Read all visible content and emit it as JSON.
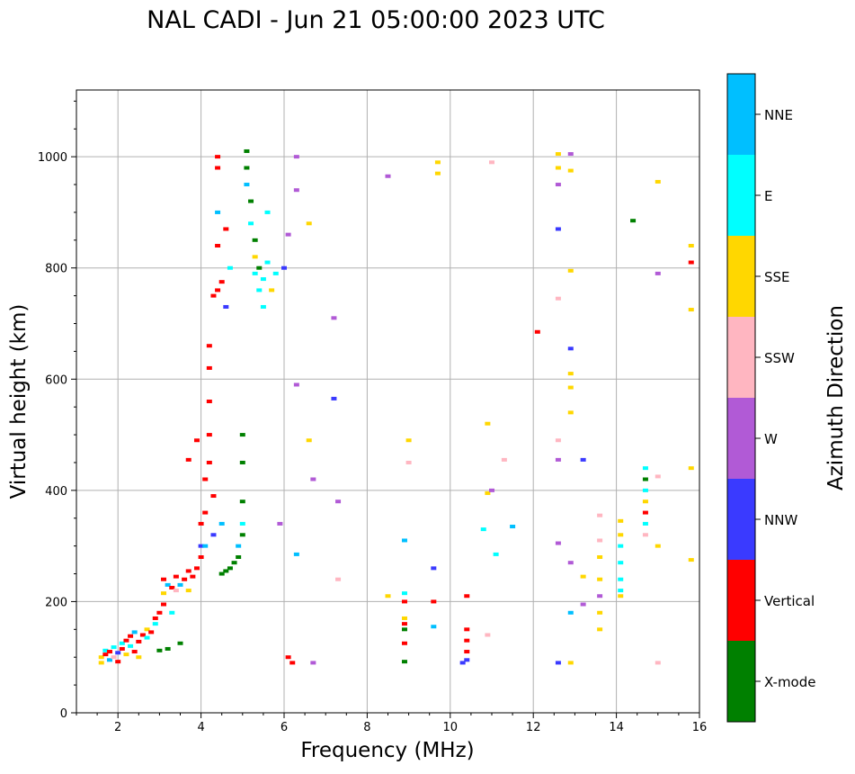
{
  "chart_data": {
    "type": "scatter",
    "title": "NAL CADI - Jun 21 05:00:00 2023 UTC",
    "xlabel": "Frequency (MHz)",
    "ylabel": "Virtual height (km)",
    "xlim": [
      1,
      16
    ],
    "ylim": [
      0,
      1120
    ],
    "x_ticks": [
      2,
      4,
      6,
      8,
      10,
      12,
      14,
      16
    ],
    "y_ticks": [
      0,
      200,
      400,
      600,
      800,
      1000
    ],
    "grid": true,
    "colorbar": {
      "label": "Azimuth Direction",
      "categories": [
        {
          "name": "X-mode",
          "color": "#008000"
        },
        {
          "name": "Vertical",
          "color": "#ff0000"
        },
        {
          "name": "NNW",
          "color": "#3a3aff"
        },
        {
          "name": "W",
          "color": "#b15ad6"
        },
        {
          "name": "SSW",
          "color": "#ffb6c1"
        },
        {
          "name": "SSE",
          "color": "#ffd700"
        },
        {
          "name": "E",
          "color": "#00ffff"
        },
        {
          "name": "NNE",
          "color": "#00bfff"
        }
      ]
    },
    "points": [
      {
        "f": 1.6,
        "h": 90,
        "c": "SSE"
      },
      {
        "f": 1.6,
        "h": 100,
        "c": "SSE"
      },
      {
        "f": 1.7,
        "h": 105,
        "c": "Vertical"
      },
      {
        "f": 1.7,
        "h": 112,
        "c": "E"
      },
      {
        "f": 1.8,
        "h": 95,
        "c": "NNE"
      },
      {
        "f": 1.8,
        "h": 110,
        "c": "Vertical"
      },
      {
        "f": 1.9,
        "h": 100,
        "c": "SSW"
      },
      {
        "f": 1.9,
        "h": 118,
        "c": "E"
      },
      {
        "f": 2.0,
        "h": 92,
        "c": "Vertical"
      },
      {
        "f": 2.0,
        "h": 108,
        "c": "NNW"
      },
      {
        "f": 2.1,
        "h": 115,
        "c": "Vertical"
      },
      {
        "f": 2.1,
        "h": 125,
        "c": "E"
      },
      {
        "f": 2.2,
        "h": 105,
        "c": "SSE"
      },
      {
        "f": 2.2,
        "h": 130,
        "c": "Vertical"
      },
      {
        "f": 2.3,
        "h": 120,
        "c": "E"
      },
      {
        "f": 2.3,
        "h": 138,
        "c": "Vertical"
      },
      {
        "f": 2.4,
        "h": 110,
        "c": "Vertical"
      },
      {
        "f": 2.4,
        "h": 145,
        "c": "NNE"
      },
      {
        "f": 2.5,
        "h": 128,
        "c": "Vertical"
      },
      {
        "f": 2.5,
        "h": 100,
        "c": "SSE"
      },
      {
        "f": 2.6,
        "h": 140,
        "c": "Vertical"
      },
      {
        "f": 2.7,
        "h": 135,
        "c": "E"
      },
      {
        "f": 2.7,
        "h": 150,
        "c": "SSE"
      },
      {
        "f": 2.8,
        "h": 145,
        "c": "Vertical"
      },
      {
        "f": 2.9,
        "h": 160,
        "c": "E"
      },
      {
        "f": 2.9,
        "h": 170,
        "c": "Vertical"
      },
      {
        "f": 3.0,
        "h": 180,
        "c": "Vertical"
      },
      {
        "f": 3.0,
        "h": 112,
        "c": "X-mode"
      },
      {
        "f": 3.1,
        "h": 195,
        "c": "Vertical"
      },
      {
        "f": 3.1,
        "h": 215,
        "c": "SSE"
      },
      {
        "f": 3.1,
        "h": 240,
        "c": "Vertical"
      },
      {
        "f": 3.2,
        "h": 230,
        "c": "NNE"
      },
      {
        "f": 3.2,
        "h": 115,
        "c": "X-mode"
      },
      {
        "f": 3.3,
        "h": 225,
        "c": "Vertical"
      },
      {
        "f": 3.3,
        "h": 180,
        "c": "E"
      },
      {
        "f": 3.4,
        "h": 245,
        "c": "Vertical"
      },
      {
        "f": 3.4,
        "h": 220,
        "c": "SSW"
      },
      {
        "f": 3.5,
        "h": 230,
        "c": "NNE"
      },
      {
        "f": 3.5,
        "h": 125,
        "c": "X-mode"
      },
      {
        "f": 3.6,
        "h": 240,
        "c": "Vertical"
      },
      {
        "f": 3.7,
        "h": 220,
        "c": "SSE"
      },
      {
        "f": 3.7,
        "h": 255,
        "c": "Vertical"
      },
      {
        "f": 3.8,
        "h": 245,
        "c": "Vertical"
      },
      {
        "f": 3.9,
        "h": 260,
        "c": "Vertical"
      },
      {
        "f": 3.9,
        "h": 490,
        "c": "Vertical"
      },
      {
        "f": 3.7,
        "h": 455,
        "c": "Vertical"
      },
      {
        "f": 4.0,
        "h": 280,
        "c": "Vertical"
      },
      {
        "f": 4.0,
        "h": 300,
        "c": "NNW"
      },
      {
        "f": 4.0,
        "h": 340,
        "c": "Vertical"
      },
      {
        "f": 4.1,
        "h": 360,
        "c": "Vertical"
      },
      {
        "f": 4.1,
        "h": 300,
        "c": "NNE"
      },
      {
        "f": 4.1,
        "h": 420,
        "c": "Vertical"
      },
      {
        "f": 4.2,
        "h": 560,
        "c": "Vertical"
      },
      {
        "f": 4.2,
        "h": 620,
        "c": "Vertical"
      },
      {
        "f": 4.2,
        "h": 660,
        "c": "Vertical"
      },
      {
        "f": 4.2,
        "h": 500,
        "c": "Vertical"
      },
      {
        "f": 4.2,
        "h": 450,
        "c": "Vertical"
      },
      {
        "f": 4.3,
        "h": 390,
        "c": "Vertical"
      },
      {
        "f": 4.3,
        "h": 320,
        "c": "NNW"
      },
      {
        "f": 4.3,
        "h": 750,
        "c": "Vertical"
      },
      {
        "f": 4.4,
        "h": 760,
        "c": "Vertical"
      },
      {
        "f": 4.4,
        "h": 840,
        "c": "Vertical"
      },
      {
        "f": 4.4,
        "h": 900,
        "c": "NNE"
      },
      {
        "f": 4.4,
        "h": 980,
        "c": "Vertical"
      },
      {
        "f": 4.4,
        "h": 1000,
        "c": "Vertical"
      },
      {
        "f": 4.5,
        "h": 775,
        "c": "Vertical"
      },
      {
        "f": 4.5,
        "h": 250,
        "c": "X-mode"
      },
      {
        "f": 4.5,
        "h": 340,
        "c": "NNE"
      },
      {
        "f": 4.6,
        "h": 870,
        "c": "Vertical"
      },
      {
        "f": 4.6,
        "h": 730,
        "c": "NNW"
      },
      {
        "f": 4.6,
        "h": 255,
        "c": "X-mode"
      },
      {
        "f": 4.7,
        "h": 800,
        "c": "E"
      },
      {
        "f": 4.7,
        "h": 260,
        "c": "X-mode"
      },
      {
        "f": 4.8,
        "h": 270,
        "c": "X-mode"
      },
      {
        "f": 4.9,
        "h": 300,
        "c": "NNE"
      },
      {
        "f": 4.9,
        "h": 280,
        "c": "X-mode"
      },
      {
        "f": 5.0,
        "h": 320,
        "c": "X-mode"
      },
      {
        "f": 5.0,
        "h": 380,
        "c": "X-mode"
      },
      {
        "f": 5.0,
        "h": 450,
        "c": "X-mode"
      },
      {
        "f": 5.0,
        "h": 500,
        "c": "X-mode"
      },
      {
        "f": 5.0,
        "h": 340,
        "c": "E"
      },
      {
        "f": 5.1,
        "h": 1010,
        "c": "X-mode"
      },
      {
        "f": 5.1,
        "h": 980,
        "c": "X-mode"
      },
      {
        "f": 5.1,
        "h": 950,
        "c": "NNE"
      },
      {
        "f": 5.2,
        "h": 920,
        "c": "X-mode"
      },
      {
        "f": 5.2,
        "h": 880,
        "c": "E"
      },
      {
        "f": 5.3,
        "h": 850,
        "c": "X-mode"
      },
      {
        "f": 5.3,
        "h": 820,
        "c": "SSE"
      },
      {
        "f": 5.3,
        "h": 790,
        "c": "E"
      },
      {
        "f": 5.4,
        "h": 760,
        "c": "E"
      },
      {
        "f": 5.4,
        "h": 800,
        "c": "X-mode"
      },
      {
        "f": 5.5,
        "h": 780,
        "c": "E"
      },
      {
        "f": 5.5,
        "h": 730,
        "c": "E"
      },
      {
        "f": 5.6,
        "h": 810,
        "c": "E"
      },
      {
        "f": 5.6,
        "h": 900,
        "c": "E"
      },
      {
        "f": 5.7,
        "h": 760,
        "c": "SSE"
      },
      {
        "f": 5.8,
        "h": 790,
        "c": "E"
      },
      {
        "f": 5.9,
        "h": 340,
        "c": "W"
      },
      {
        "f": 6.0,
        "h": 800,
        "c": "NNW"
      },
      {
        "f": 6.1,
        "h": 860,
        "c": "W"
      },
      {
        "f": 6.1,
        "h": 100,
        "c": "Vertical"
      },
      {
        "f": 6.2,
        "h": 90,
        "c": "Vertical"
      },
      {
        "f": 6.3,
        "h": 1000,
        "c": "W"
      },
      {
        "f": 6.3,
        "h": 940,
        "c": "W"
      },
      {
        "f": 6.3,
        "h": 590,
        "c": "W"
      },
      {
        "f": 6.3,
        "h": 285,
        "c": "NNE"
      },
      {
        "f": 6.6,
        "h": 880,
        "c": "SSE"
      },
      {
        "f": 6.6,
        "h": 490,
        "c": "SSE"
      },
      {
        "f": 6.7,
        "h": 420,
        "c": "W"
      },
      {
        "f": 6.7,
        "h": 90,
        "c": "W"
      },
      {
        "f": 7.2,
        "h": 565,
        "c": "NNW"
      },
      {
        "f": 7.2,
        "h": 710,
        "c": "W"
      },
      {
        "f": 7.3,
        "h": 380,
        "c": "W"
      },
      {
        "f": 7.3,
        "h": 240,
        "c": "SSW"
      },
      {
        "f": 8.5,
        "h": 965,
        "c": "W"
      },
      {
        "f": 8.5,
        "h": 210,
        "c": "SSE"
      },
      {
        "f": 8.9,
        "h": 310,
        "c": "NNE"
      },
      {
        "f": 8.9,
        "h": 215,
        "c": "E"
      },
      {
        "f": 8.9,
        "h": 200,
        "c": "Vertical"
      },
      {
        "f": 8.9,
        "h": 170,
        "c": "SSE"
      },
      {
        "f": 8.9,
        "h": 160,
        "c": "Vertical"
      },
      {
        "f": 8.9,
        "h": 150,
        "c": "X-mode"
      },
      {
        "f": 8.9,
        "h": 125,
        "c": "Vertical"
      },
      {
        "f": 8.9,
        "h": 92,
        "c": "X-mode"
      },
      {
        "f": 9.0,
        "h": 490,
        "c": "SSE"
      },
      {
        "f": 9.0,
        "h": 450,
        "c": "SSW"
      },
      {
        "f": 9.7,
        "h": 990,
        "c": "SSE"
      },
      {
        "f": 9.7,
        "h": 970,
        "c": "SSE"
      },
      {
        "f": 9.6,
        "h": 260,
        "c": "NNW"
      },
      {
        "f": 9.6,
        "h": 200,
        "c": "Vertical"
      },
      {
        "f": 9.6,
        "h": 155,
        "c": "NNE"
      },
      {
        "f": 10.3,
        "h": 90,
        "c": "NNW"
      },
      {
        "f": 10.4,
        "h": 210,
        "c": "Vertical"
      },
      {
        "f": 10.4,
        "h": 150,
        "c": "Vertical"
      },
      {
        "f": 10.4,
        "h": 130,
        "c": "Vertical"
      },
      {
        "f": 10.4,
        "h": 110,
        "c": "Vertical"
      },
      {
        "f": 10.4,
        "h": 95,
        "c": "NNW"
      },
      {
        "f": 10.8,
        "h": 330,
        "c": "E"
      },
      {
        "f": 10.9,
        "h": 520,
        "c": "SSE"
      },
      {
        "f": 10.9,
        "h": 395,
        "c": "SSE"
      },
      {
        "f": 10.9,
        "h": 140,
        "c": "SSW"
      },
      {
        "f": 11.0,
        "h": 990,
        "c": "SSW"
      },
      {
        "f": 11.0,
        "h": 400,
        "c": "W"
      },
      {
        "f": 11.1,
        "h": 285,
        "c": "E"
      },
      {
        "f": 11.3,
        "h": 455,
        "c": "SSW"
      },
      {
        "f": 11.5,
        "h": 335,
        "c": "NNE"
      },
      {
        "f": 12.1,
        "h": 685,
        "c": "Vertical"
      },
      {
        "f": 12.6,
        "h": 1005,
        "c": "SSE"
      },
      {
        "f": 12.6,
        "h": 980,
        "c": "SSE"
      },
      {
        "f": 12.6,
        "h": 950,
        "c": "W"
      },
      {
        "f": 12.6,
        "h": 870,
        "c": "NNW"
      },
      {
        "f": 12.6,
        "h": 745,
        "c": "SSW"
      },
      {
        "f": 12.6,
        "h": 490,
        "c": "SSW"
      },
      {
        "f": 12.6,
        "h": 455,
        "c": "W"
      },
      {
        "f": 12.6,
        "h": 305,
        "c": "W"
      },
      {
        "f": 12.6,
        "h": 90,
        "c": "NNW"
      },
      {
        "f": 12.9,
        "h": 1005,
        "c": "W"
      },
      {
        "f": 12.9,
        "h": 975,
        "c": "SSE"
      },
      {
        "f": 12.9,
        "h": 795,
        "c": "SSE"
      },
      {
        "f": 12.9,
        "h": 655,
        "c": "NNW"
      },
      {
        "f": 12.9,
        "h": 610,
        "c": "SSE"
      },
      {
        "f": 12.9,
        "h": 585,
        "c": "SSE"
      },
      {
        "f": 12.9,
        "h": 540,
        "c": "SSE"
      },
      {
        "f": 12.9,
        "h": 270,
        "c": "W"
      },
      {
        "f": 12.9,
        "h": 180,
        "c": "NNE"
      },
      {
        "f": 12.9,
        "h": 90,
        "c": "SSE"
      },
      {
        "f": 13.2,
        "h": 455,
        "c": "NNW"
      },
      {
        "f": 13.2,
        "h": 245,
        "c": "SSE"
      },
      {
        "f": 13.2,
        "h": 195,
        "c": "W"
      },
      {
        "f": 13.6,
        "h": 355,
        "c": "SSW"
      },
      {
        "f": 13.6,
        "h": 310,
        "c": "SSW"
      },
      {
        "f": 13.6,
        "h": 280,
        "c": "SSE"
      },
      {
        "f": 13.6,
        "h": 240,
        "c": "SSE"
      },
      {
        "f": 13.6,
        "h": 210,
        "c": "W"
      },
      {
        "f": 13.6,
        "h": 180,
        "c": "SSE"
      },
      {
        "f": 13.6,
        "h": 150,
        "c": "SSE"
      },
      {
        "f": 14.1,
        "h": 345,
        "c": "SSE"
      },
      {
        "f": 14.1,
        "h": 320,
        "c": "SSE"
      },
      {
        "f": 14.1,
        "h": 300,
        "c": "E"
      },
      {
        "f": 14.1,
        "h": 270,
        "c": "E"
      },
      {
        "f": 14.1,
        "h": 240,
        "c": "E"
      },
      {
        "f": 14.1,
        "h": 220,
        "c": "E"
      },
      {
        "f": 14.1,
        "h": 210,
        "c": "SSE"
      },
      {
        "f": 14.4,
        "h": 885,
        "c": "X-mode"
      },
      {
        "f": 14.7,
        "h": 440,
        "c": "E"
      },
      {
        "f": 14.7,
        "h": 420,
        "c": "X-mode"
      },
      {
        "f": 14.7,
        "h": 400,
        "c": "E"
      },
      {
        "f": 14.7,
        "h": 380,
        "c": "SSE"
      },
      {
        "f": 14.7,
        "h": 360,
        "c": "Vertical"
      },
      {
        "f": 14.7,
        "h": 340,
        "c": "E"
      },
      {
        "f": 14.7,
        "h": 320,
        "c": "SSW"
      },
      {
        "f": 15.0,
        "h": 955,
        "c": "SSE"
      },
      {
        "f": 15.0,
        "h": 790,
        "c": "W"
      },
      {
        "f": 15.0,
        "h": 425,
        "c": "SSW"
      },
      {
        "f": 15.0,
        "h": 300,
        "c": "SSE"
      },
      {
        "f": 15.0,
        "h": 90,
        "c": "SSW"
      },
      {
        "f": 15.8,
        "h": 840,
        "c": "SSE"
      },
      {
        "f": 15.8,
        "h": 810,
        "c": "Vertical"
      },
      {
        "f": 15.8,
        "h": 725,
        "c": "SSE"
      },
      {
        "f": 15.8,
        "h": 440,
        "c": "SSE"
      },
      {
        "f": 15.8,
        "h": 275,
        "c": "SSE"
      }
    ]
  }
}
